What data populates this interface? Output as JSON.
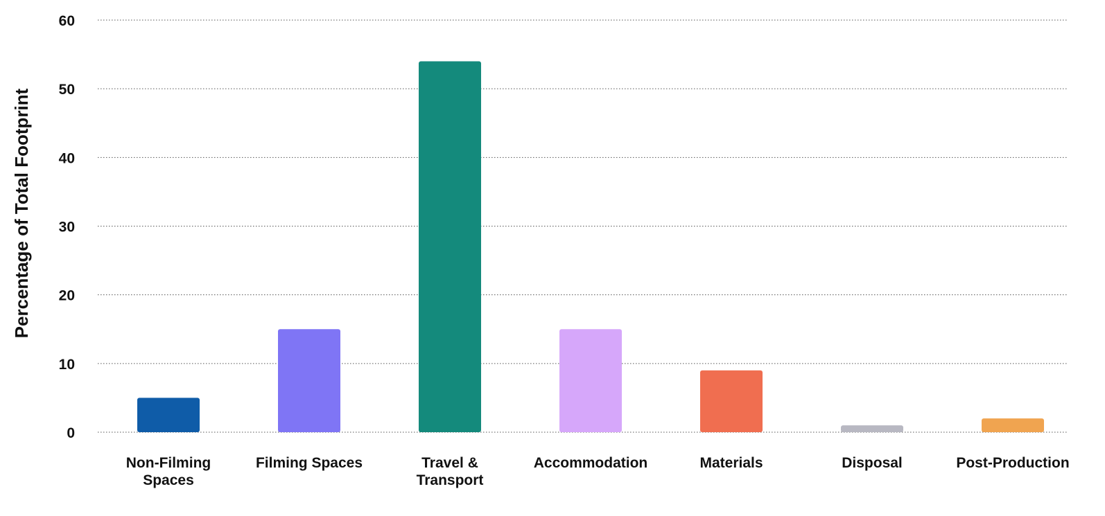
{
  "chart_data": {
    "type": "bar",
    "title": "",
    "xlabel": "",
    "ylabel": "Percentage of Total Footprint",
    "ylim": [
      0,
      60
    ],
    "yticks": [
      0,
      10,
      20,
      30,
      40,
      50,
      60
    ],
    "grid": true,
    "categories": [
      [
        "Non-Filming",
        "Spaces"
      ],
      [
        "Filming Spaces"
      ],
      [
        "Travel &",
        "Transport"
      ],
      [
        "Accommodation"
      ],
      [
        "Materials"
      ],
      [
        "Disposal"
      ],
      [
        "Post-Production"
      ]
    ],
    "values": [
      5,
      15,
      54,
      15,
      9,
      1,
      2
    ],
    "colors": [
      "#0f5ca8",
      "#7f75f5",
      "#148a7c",
      "#d6a7fa",
      "#f06e50",
      "#b8b8c2",
      "#f0a450"
    ]
  }
}
